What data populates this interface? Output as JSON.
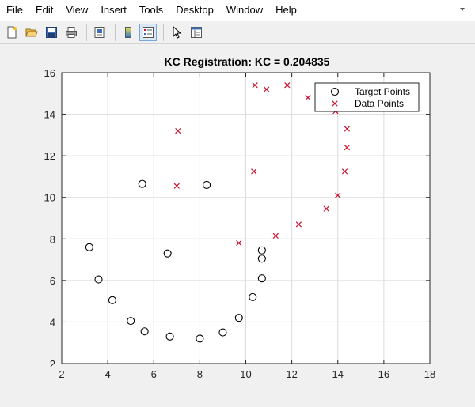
{
  "menu": {
    "items": [
      "File",
      "Edit",
      "View",
      "Insert",
      "Tools",
      "Desktop",
      "Window",
      "Help"
    ]
  },
  "toolbar": {
    "icons": [
      "new-figure-icon",
      "open-file-icon",
      "save-icon",
      "print-icon",
      "print-preview-icon",
      "colorbar-icon",
      "legend-icon",
      "pointer-icon",
      "property-editor-icon"
    ]
  },
  "chart_data": {
    "type": "scatter",
    "title": "KC Registration: KC = 0.204835",
    "xlabel": "",
    "ylabel": "",
    "xlim": [
      2,
      18
    ],
    "ylim": [
      2,
      16
    ],
    "xticks": [
      2,
      4,
      6,
      8,
      10,
      12,
      14,
      16,
      18
    ],
    "yticks": [
      2,
      4,
      6,
      8,
      10,
      12,
      14,
      16
    ],
    "grid": true,
    "legend_position": "top-right",
    "series": [
      {
        "name": "Target Points",
        "marker": "circle",
        "color": "#000000",
        "points": [
          [
            3.2,
            7.6
          ],
          [
            3.6,
            6.05
          ],
          [
            4.2,
            5.05
          ],
          [
            5.0,
            4.05
          ],
          [
            5.6,
            3.55
          ],
          [
            6.7,
            3.3
          ],
          [
            8.0,
            3.2
          ],
          [
            9.0,
            3.5
          ],
          [
            9.7,
            4.2
          ],
          [
            10.3,
            5.2
          ],
          [
            10.7,
            6.1
          ],
          [
            10.7,
            7.05
          ],
          [
            10.7,
            7.45
          ],
          [
            6.6,
            7.3
          ],
          [
            5.5,
            10.65
          ],
          [
            8.3,
            10.6
          ]
        ]
      },
      {
        "name": "Data Points",
        "marker": "x",
        "color": "#c8102e",
        "points": [
          [
            7.05,
            13.2
          ],
          [
            7.0,
            10.55
          ],
          [
            9.7,
            7.8
          ],
          [
            10.35,
            11.25
          ],
          [
            10.4,
            15.4
          ],
          [
            10.9,
            15.2
          ],
          [
            11.3,
            8.15
          ],
          [
            11.8,
            15.4
          ],
          [
            12.3,
            8.7
          ],
          [
            12.7,
            14.8
          ],
          [
            13.5,
            9.45
          ],
          [
            13.9,
            14.15
          ],
          [
            14.0,
            10.1
          ],
          [
            14.3,
            11.25
          ],
          [
            14.4,
            12.4
          ],
          [
            14.4,
            13.3
          ]
        ]
      }
    ]
  }
}
